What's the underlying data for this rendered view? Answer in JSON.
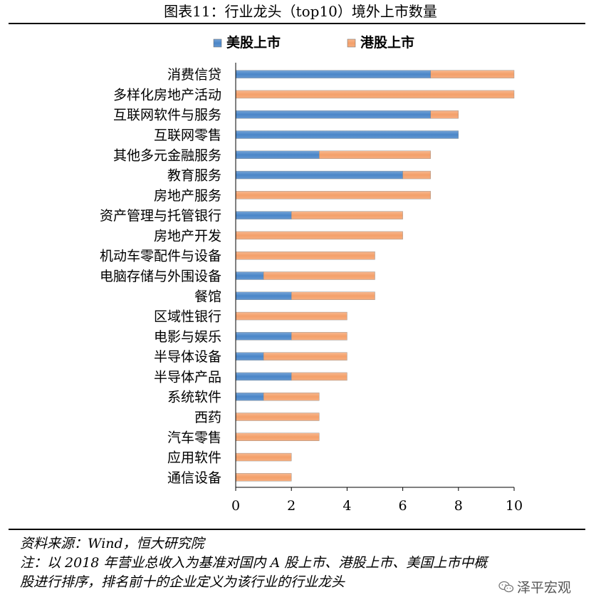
{
  "title": "图表11：行业龙头（top10）境外上市数量",
  "chart_data": {
    "type": "bar",
    "orientation": "horizontal",
    "stacked": true,
    "categories": [
      "消费信贷",
      "多样化房地产活动",
      "互联网软件与服务",
      "互联网零售",
      "其他多元金融服务",
      "教育服务",
      "房地产服务",
      "资产管理与托管银行",
      "房地产开发",
      "机动车零配件与设备",
      "电脑存储与外围设备",
      "餐馆",
      "区域性银行",
      "电影与娱乐",
      "半导体设备",
      "半导体产品",
      "系统软件",
      "西药",
      "汽车零售",
      "应用软件",
      "通信设备"
    ],
    "series": [
      {
        "name": "美股上市",
        "color": "#4A86C8",
        "values": [
          7,
          0,
          7,
          8,
          3,
          6,
          0,
          2,
          0,
          0,
          1,
          2,
          0,
          2,
          1,
          2,
          1,
          0,
          0,
          0,
          0
        ]
      },
      {
        "name": "港股上市",
        "color": "#F4A06A",
        "values": [
          3,
          10,
          1,
          0,
          4,
          1,
          7,
          4,
          6,
          5,
          4,
          3,
          4,
          2,
          3,
          2,
          2,
          3,
          3,
          2,
          2
        ]
      }
    ],
    "xlim": [
      0,
      10
    ],
    "xticks": [
      0,
      2,
      4,
      6,
      8,
      10
    ],
    "legend": "top",
    "grid": false
  },
  "notes": {
    "source": "资料来源：Wind，恒大研究院",
    "note_line1": "注：以 2018 年营业总收入为基准对国内 A 股上市、港股上市、美国上市中概",
    "note_line2": "股进行排序，排名前十的企业定义为该行业的行业龙头"
  },
  "watermark": "泽平宏观"
}
